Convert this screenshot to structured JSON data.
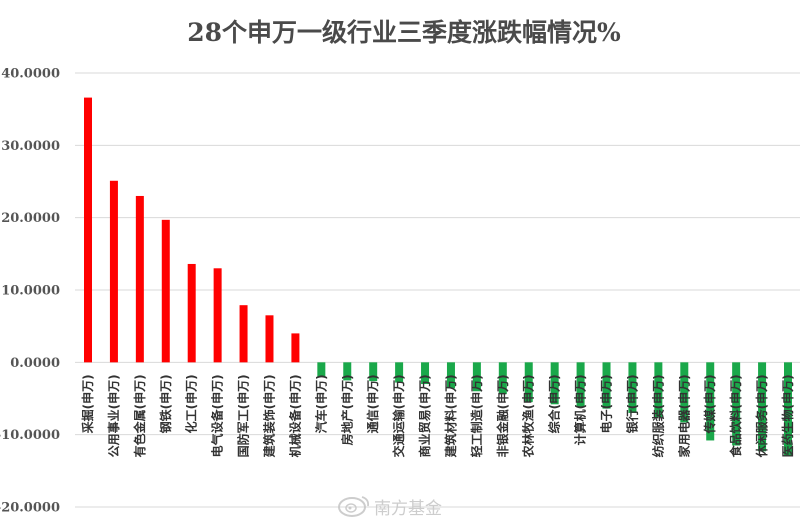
{
  "chart_data": {
    "type": "bar",
    "title": "28个申万一级行业三季度涨跌幅情况%",
    "categories": [
      "采掘(申万)",
      "公用事业(申万)",
      "有色金属(申万)",
      "钢铁(申万)",
      "化工(申万)",
      "电气设备(申万)",
      "国防军工(申万)",
      "建筑装饰(申万)",
      "机械设备(申万)",
      "汽车(申万)",
      "房地产(申万)",
      "通信(申万)",
      "交通运输(申万)",
      "商业贸易(申万)",
      "建筑材料(申万)",
      "轻工制造(申万)",
      "非银金融(申万)",
      "农林牧渔(申万)",
      "综合(申万)",
      "计算机(申万)",
      "电子(申万)",
      "银行(申万)",
      "纺织服装(申万)",
      "家用电器(申万)",
      "传媒(申万)",
      "食品饮料(申万)",
      "休闲服务(申万)",
      "医药生物(申万)"
    ],
    "values": [
      36.6,
      25.1,
      23.0,
      19.7,
      13.6,
      13.0,
      7.9,
      6.5,
      4.0,
      -2.0,
      -2.5,
      -2.6,
      -2.8,
      -3.0,
      -3.6,
      -4.0,
      -4.4,
      -5.5,
      -5.8,
      -6.2,
      -6.4,
      -7.0,
      -7.6,
      -8.3,
      -10.8,
      -11.5,
      -12.3,
      -13.0
    ],
    "ylim": [
      -20,
      40
    ],
    "yticks": [
      "40.0000",
      "30.0000",
      "20.0000",
      "10.0000",
      "0.0000",
      "-10.0000",
      "-20.0000"
    ],
    "ytick_values": [
      40,
      30,
      20,
      10,
      0,
      -10,
      -20
    ],
    "positive_color": "#ff0000",
    "negative_color": "#1aa84a",
    "grid": true,
    "legend": "none"
  },
  "watermark": {
    "text": "南方基金",
    "icon": "weibo-icon"
  }
}
